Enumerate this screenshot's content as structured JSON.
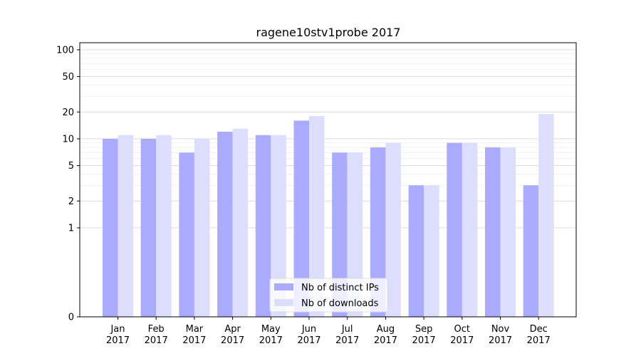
{
  "chart_data": {
    "type": "bar",
    "title": "ragene10stv1probe 2017",
    "xlabel": "",
    "ylabel": "",
    "categories": [
      "Jan\n2017",
      "Feb\n2017",
      "Mar\n2017",
      "Apr\n2017",
      "May\n2017",
      "Jun\n2017",
      "Jul\n2017",
      "Aug\n2017",
      "Sep\n2017",
      "Oct\n2017",
      "Nov\n2017",
      "Dec\n2017"
    ],
    "series": [
      {
        "name": "Nb of distinct IPs",
        "color": "#aaaaff",
        "values": [
          10,
          10,
          7,
          12,
          11,
          16,
          7,
          8,
          3,
          9,
          8,
          3
        ]
      },
      {
        "name": "Nb of downloads",
        "color": "#ddddff",
        "values": [
          11,
          11,
          10,
          13,
          11,
          18,
          7,
          9,
          3,
          9,
          8,
          19
        ]
      }
    ],
    "y_scale": "symlog",
    "y_ticks": [
      0,
      1,
      2,
      5,
      10,
      20,
      50,
      100
    ],
    "ylim": [
      0,
      120
    ],
    "grid": true,
    "legend_position": "lower-center"
  }
}
